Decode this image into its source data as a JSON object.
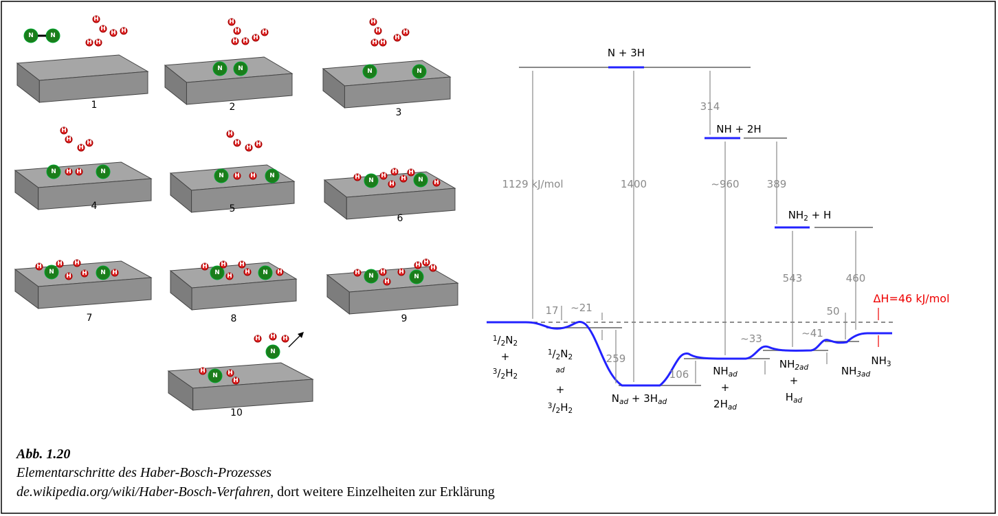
{
  "atom_labels": {
    "nitrogen": "N",
    "hydrogen": "H"
  },
  "steps": [
    "1",
    "2",
    "3",
    "4",
    "5",
    "6",
    "7",
    "8",
    "9",
    "10"
  ],
  "energy_diagram": {
    "levels": {
      "n_3h": [
        {
          "text": "N + 3H"
        }
      ],
      "nh_2h": [
        {
          "text": "NH + 2H"
        }
      ],
      "nh2_h": [
        {
          "text": "NH"
        },
        {
          "sub": "2"
        },
        {
          "text": " + H"
        }
      ]
    },
    "species": {
      "reactants": [
        [
          {
            "sup": "1"
          },
          {
            "text": "/"
          },
          {
            "sub": "2"
          },
          {
            "text": "N"
          },
          {
            "sub": "2"
          }
        ],
        [
          {
            "text": "+"
          }
        ],
        [
          {
            "sup": "3"
          },
          {
            "text": "/"
          },
          {
            "sub": "2"
          },
          {
            "text": "H"
          },
          {
            "sub": "2"
          }
        ]
      ],
      "adsorbed": [
        [
          {
            "sup": "1"
          },
          {
            "text": "/"
          },
          {
            "sub": "2"
          },
          {
            "text": "N"
          },
          {
            "sub": "2"
          }
        ],
        [
          {
            "sup": "ad"
          }
        ],
        [
          {
            "text": "+"
          }
        ],
        [
          {
            "sup": "3"
          },
          {
            "text": "/"
          },
          {
            "sub": "2"
          },
          {
            "text": "H"
          },
          {
            "sub": "2"
          }
        ]
      ],
      "n_ad": [
        [
          {
            "text": "N"
          },
          {
            "sub": "ad"
          },
          {
            "text": " + 3H"
          },
          {
            "sub": "ad"
          }
        ]
      ],
      "nh_ad": [
        [
          {
            "text": "NH"
          },
          {
            "sub": "ad"
          }
        ],
        [
          {
            "text": "+"
          }
        ],
        [
          {
            "text": "2H"
          },
          {
            "sub": "ad"
          }
        ]
      ],
      "nh2_ad": [
        [
          {
            "text": "NH"
          },
          {
            "sub": "2ad"
          }
        ],
        [
          {
            "text": "+"
          }
        ],
        [
          {
            "text": "H"
          },
          {
            "sub": "ad"
          }
        ]
      ],
      "nh3_ad": [
        [
          {
            "text": "NH"
          },
          {
            "sub": "3ad"
          }
        ]
      ],
      "nh3": [
        [
          {
            "text": "NH"
          },
          {
            "sub": "3"
          }
        ]
      ]
    },
    "energies": {
      "e1129": "1129 kJ/mol",
      "e1400": "1400",
      "e314": "314",
      "e960": "~960",
      "e389": "389",
      "e543": "543",
      "e460": "460",
      "e17": "17",
      "e21": "~21",
      "e259": "259",
      "e106": "106",
      "e33": "~33",
      "e41": "~41",
      "e50": "50"
    },
    "delta_h": "ΔH=46 kJ/mol"
  },
  "caption": {
    "figure": "Abb. 1.20",
    "title": "Elementarschritte des Haber-Bosch-Prozesses",
    "source": "de.wikipedia.org/wiki/Haber-Bosch-Verfahren,",
    "note": " dort weitere Einzelheiten zur Erklärung"
  }
}
